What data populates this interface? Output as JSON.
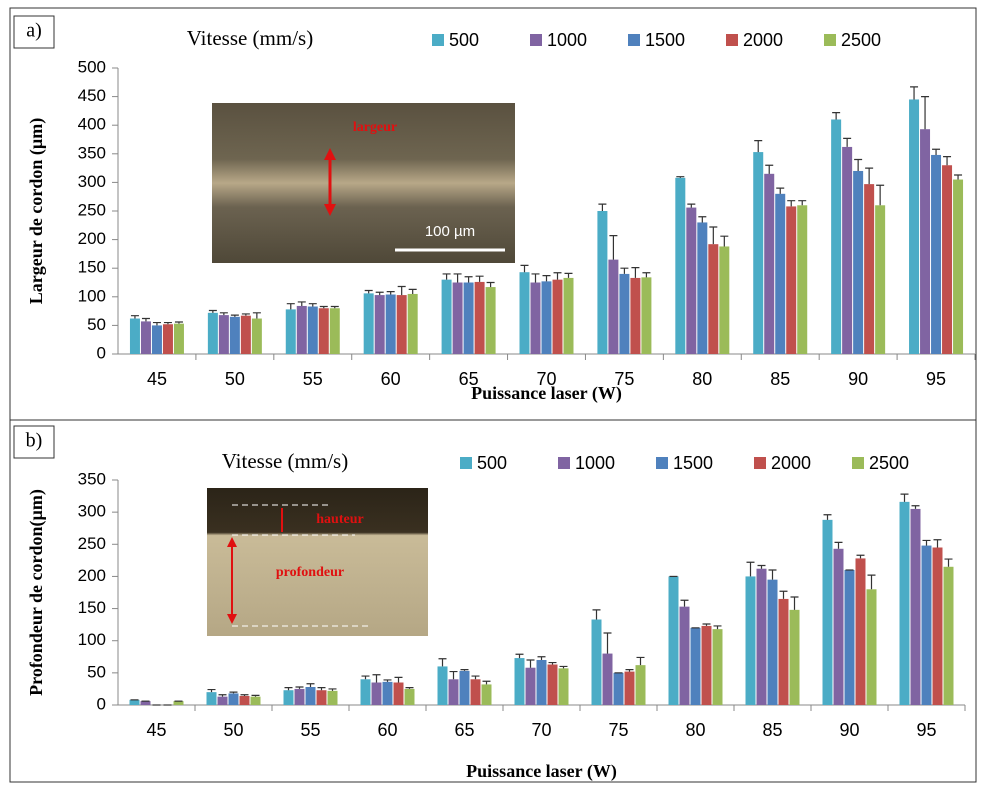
{
  "chart_data": [
    {
      "type": "bar",
      "panel_label": "a)",
      "title": "Vitesse (mm/s)",
      "xlabel": "Puissance laser (W)",
      "ylabel": "Largeur de cordon (µm)",
      "categories": [
        "45",
        "50",
        "55",
        "60",
        "65",
        "70",
        "75",
        "80",
        "85",
        "90",
        "95"
      ],
      "series": [
        {
          "name": "500",
          "color": "#4bacc6",
          "values": [
            62,
            72,
            78,
            106,
            130,
            143,
            250,
            308,
            353,
            410,
            445
          ],
          "errors": [
            5,
            4,
            10,
            5,
            10,
            12,
            12,
            2,
            20,
            12,
            22
          ]
        },
        {
          "name": "1000",
          "color": "#8064a2",
          "values": [
            57,
            68,
            84,
            103,
            125,
            125,
            165,
            256,
            315,
            362,
            393
          ],
          "errors": [
            5,
            4,
            7,
            5,
            15,
            15,
            42,
            6,
            15,
            15,
            57
          ]
        },
        {
          "name": "1500",
          "color": "#4f81bd",
          "values": [
            50,
            65,
            83,
            104,
            125,
            127,
            140,
            230,
            280,
            320,
            348
          ],
          "errors": [
            5,
            3,
            5,
            5,
            10,
            10,
            10,
            10,
            10,
            20,
            10
          ]
        },
        {
          "name": "2000",
          "color": "#c0504d",
          "values": [
            52,
            67,
            80,
            103,
            126,
            130,
            133,
            192,
            258,
            297,
            330
          ],
          "errors": [
            3,
            3,
            3,
            15,
            10,
            12,
            18,
            30,
            10,
            28,
            15
          ]
        },
        {
          "name": "2500",
          "color": "#9bbb59",
          "values": [
            53,
            62,
            80,
            105,
            117,
            133,
            134,
            188,
            260,
            260,
            305
          ],
          "errors": [
            3,
            10,
            3,
            8,
            8,
            8,
            8,
            18,
            8,
            35,
            8
          ]
        }
      ],
      "ylim": [
        0,
        500
      ],
      "yticks": [
        0,
        50,
        100,
        150,
        200,
        250,
        300,
        350,
        400,
        450,
        500
      ],
      "inset_labels": [
        "largeur",
        "100 µm"
      ]
    },
    {
      "type": "bar",
      "panel_label": "b)",
      "title": "Vitesse (mm/s)",
      "xlabel": "Puissance laser (W)",
      "ylabel": "Profondeur de cordon(µm)",
      "categories": [
        "45",
        "50",
        "55",
        "60",
        "65",
        "70",
        "75",
        "80",
        "85",
        "90",
        "95"
      ],
      "series": [
        {
          "name": "500",
          "color": "#4bacc6",
          "values": [
            8,
            20,
            23,
            40,
            60,
            73,
            133,
            200,
            200,
            288,
            316
          ],
          "errors": [
            0,
            4,
            4,
            5,
            12,
            6,
            15,
            0,
            22,
            8,
            12
          ]
        },
        {
          "name": "1000",
          "color": "#8064a2",
          "values": [
            6,
            13,
            25,
            35,
            40,
            58,
            80,
            153,
            212,
            243,
            305
          ],
          "errors": [
            0,
            3,
            3,
            12,
            12,
            12,
            32,
            10,
            5,
            10,
            5
          ]
        },
        {
          "name": "1500",
          "color": "#4f81bd",
          "values": [
            0,
            18,
            28,
            36,
            53,
            70,
            50,
            120,
            195,
            210,
            248
          ],
          "errors": [
            0,
            2,
            5,
            3,
            2,
            5,
            0,
            0,
            15,
            0,
            8
          ]
        },
        {
          "name": "2000",
          "color": "#c0504d",
          "values": [
            0,
            14,
            23,
            35,
            40,
            63,
            52,
            123,
            165,
            228,
            245
          ],
          "errors": [
            0,
            2,
            4,
            8,
            5,
            3,
            3,
            3,
            12,
            5,
            12
          ]
        },
        {
          "name": "2500",
          "color": "#9bbb59",
          "values": [
            6,
            13,
            22,
            25,
            32,
            57,
            62,
            118,
            148,
            180,
            215
          ],
          "errors": [
            0,
            2,
            3,
            2,
            5,
            3,
            12,
            5,
            20,
            22,
            12
          ]
        }
      ],
      "ylim": [
        0,
        350
      ],
      "yticks": [
        0,
        50,
        100,
        150,
        200,
        250,
        300,
        350
      ],
      "inset_labels": [
        "hauteur",
        "profondeur"
      ]
    }
  ]
}
